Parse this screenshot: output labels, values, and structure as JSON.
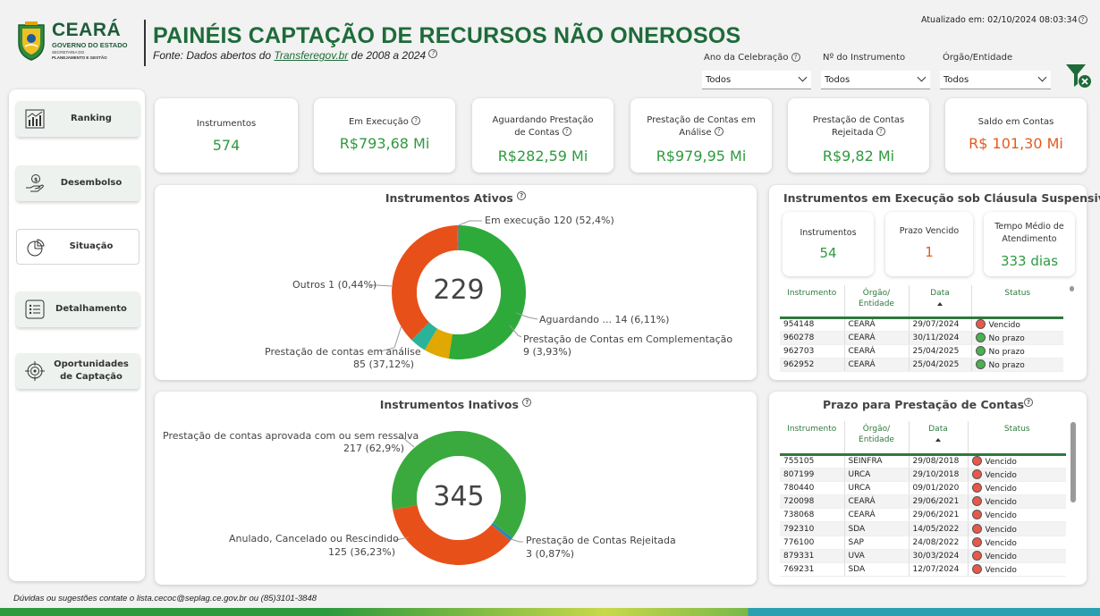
{
  "header": {
    "logo_name": "CEARÁ",
    "logo_sub1": "GOVERNO DO ESTADO",
    "logo_sub2": "SECRETARIA DO",
    "logo_sub3": "PLANEJAMENTO E GESTÃO",
    "title": "PAINÉIS CAPTAÇÃO DE RECURSOS NÃO ONEROSOS",
    "source_prefix": "Fonte: Dados abertos do ",
    "source_link": "Transferegov.br",
    "source_suffix": " de 2008 a 2024",
    "updated": "Atualizado em: 02/10/2024 08:03:34"
  },
  "filters": [
    {
      "label": "Ano da Celebração",
      "value": "Todos"
    },
    {
      "label": "Nº do Instrumento",
      "value": "Todos"
    },
    {
      "label": "Órgão/Entidade",
      "value": "Todos"
    }
  ],
  "sidebar": {
    "items": [
      {
        "label": "Ranking",
        "icon": "bar-chart-icon"
      },
      {
        "label": "Desembolso",
        "icon": "hand-money-icon"
      },
      {
        "label": "Situação",
        "icon": "pie-chart-icon"
      },
      {
        "label": "Detalhamento",
        "icon": "list-icon"
      },
      {
        "label": "Oportunidades de Captação",
        "icon": "target-icon"
      }
    ]
  },
  "kpis": [
    {
      "title": "Instrumentos",
      "value": "574",
      "color": "#2e9a3e"
    },
    {
      "title": "Em Execução",
      "value": "R$793,68 Mi",
      "color": "#2e9a3e"
    },
    {
      "title": "Aguardando Prestação de Contas",
      "value": "R$282,59 Mi",
      "color": "#2e9a3e"
    },
    {
      "title": "Prestação de Contas em Análise",
      "value": "R$979,95 Mi",
      "color": "#2e9a3e"
    },
    {
      "title": "Prestação de Contas Rejeitada",
      "value": "R$9,82 Mi",
      "color": "#2e9a3e"
    },
    {
      "title": "Saldo em Contas",
      "value": "R$ 101,30 Mi",
      "color": "#e55a1e"
    }
  ],
  "chart_data": [
    {
      "type": "pie",
      "title": "Instrumentos Ativos",
      "total": "229",
      "slices": [
        {
          "label": "Em execução",
          "value": 120,
          "pct": "52,4%",
          "color": "#2eaa3a"
        },
        {
          "label": "Aguardando ...",
          "value": 14,
          "pct": "6,11%",
          "color": "#e0a800"
        },
        {
          "label": "Prestação de Contas em Complementação",
          "value": 9,
          "pct": "3,93%",
          "color": "#2ab39a"
        },
        {
          "label": "Prestação de contas em análise",
          "value": 85,
          "pct": "37,12%",
          "color": "#e8501a"
        },
        {
          "label": "Outros",
          "value": 1,
          "pct": "0,44%",
          "color": "#7a7a7a"
        }
      ]
    },
    {
      "type": "pie",
      "title": "Instrumentos Inativos",
      "total": "345",
      "slices": [
        {
          "label": "Prestação de contas aprovada com ou sem ressalva",
          "value": 217,
          "pct": "62,9%",
          "color": "#3aaa3e"
        },
        {
          "label": "Prestação de Contas Rejeitada",
          "value": 3,
          "pct": "0,87%",
          "color": "#2a8ab3"
        },
        {
          "label": "Anulado, Cancelado ou Rescindido",
          "value": 125,
          "pct": "36,23%",
          "color": "#e8501a"
        }
      ]
    }
  ],
  "ativos_labels": {
    "execucao": "Em execução 120 (52,4%)",
    "outros": "Outros 1 (0,44%)",
    "aguardando": "Aguardando ... 14 (6,11%)",
    "complementacao1": "Prestação de Contas em Complementação",
    "complementacao2": "9 (3,93%)",
    "analise1": "Prestação de contas em análise",
    "analise2": "85 (37,12%)"
  },
  "inativos_labels": {
    "aprovada1": "Prestação de contas aprovada com ou sem ressalva",
    "aprovada2": "217 (62,9%)",
    "anulado1": "Anulado, Cancelado ou Rescindido",
    "anulado2": "125 (36,23%)",
    "rejeitada1": "Prestação de Contas Rejeitada",
    "rejeitada2": "3 (0,87%)"
  },
  "suspensiva": {
    "title": "Instrumentos em Execução sob Cláusula Suspensiva",
    "kpis": [
      {
        "title": "Instrumentos",
        "value": "54"
      },
      {
        "title": "Prazo Vencido",
        "value": "1"
      },
      {
        "title": "Tempo Médio de Atendimento",
        "value": "333 dias"
      }
    ],
    "columns": [
      "Instrumento",
      "Órgão/ Entidade",
      "Data",
      "Status"
    ],
    "rows": [
      {
        "instrumento": "954148",
        "orgao": "CEARÁ",
        "data": "29/07/2024",
        "status": "Vencido",
        "ok": false
      },
      {
        "instrumento": "960278",
        "orgao": "CEARÁ",
        "data": "30/11/2024",
        "status": "No prazo",
        "ok": true
      },
      {
        "instrumento": "962703",
        "orgao": "CEARÁ",
        "data": "25/04/2025",
        "status": "No prazo",
        "ok": true
      },
      {
        "instrumento": "962952",
        "orgao": "CEARÁ",
        "data": "25/04/2025",
        "status": "No prazo",
        "ok": true
      }
    ]
  },
  "prazo": {
    "title": "Prazo para Prestação de Contas",
    "columns": [
      "Instrumento",
      "Órgão/ Entidade",
      "Data",
      "Status"
    ],
    "rows": [
      {
        "instrumento": "755105",
        "orgao": "SEINFRA",
        "data": "29/08/2018",
        "status": "Vencido",
        "ok": false
      },
      {
        "instrumento": "807199",
        "orgao": "URCA",
        "data": "29/10/2018",
        "status": "Vencido",
        "ok": false
      },
      {
        "instrumento": "780440",
        "orgao": "URCA",
        "data": "09/01/2020",
        "status": "Vencido",
        "ok": false
      },
      {
        "instrumento": "720098",
        "orgao": "CEARÁ",
        "data": "29/06/2021",
        "status": "Vencido",
        "ok": false
      },
      {
        "instrumento": "738068",
        "orgao": "CEARÁ",
        "data": "29/06/2021",
        "status": "Vencido",
        "ok": false
      },
      {
        "instrumento": "792310",
        "orgao": "SDA",
        "data": "14/05/2022",
        "status": "Vencido",
        "ok": false
      },
      {
        "instrumento": "776100",
        "orgao": "SAP",
        "data": "24/08/2022",
        "status": "Vencido",
        "ok": false
      },
      {
        "instrumento": "879331",
        "orgao": "UVA",
        "data": "30/03/2024",
        "status": "Vencido",
        "ok": false
      },
      {
        "instrumento": "769231",
        "orgao": "SDA",
        "data": "12/07/2024",
        "status": "Vencido",
        "ok": false
      }
    ]
  },
  "footer": {
    "text": "Dúvidas ou sugestões contate o lista.cecoc@seplag.ce.gov.br ou (85)3101-3848"
  },
  "colors": {
    "brand_green": "#1e6b3a",
    "value_green": "#2e9a3e",
    "value_orange": "#e55a1e"
  }
}
